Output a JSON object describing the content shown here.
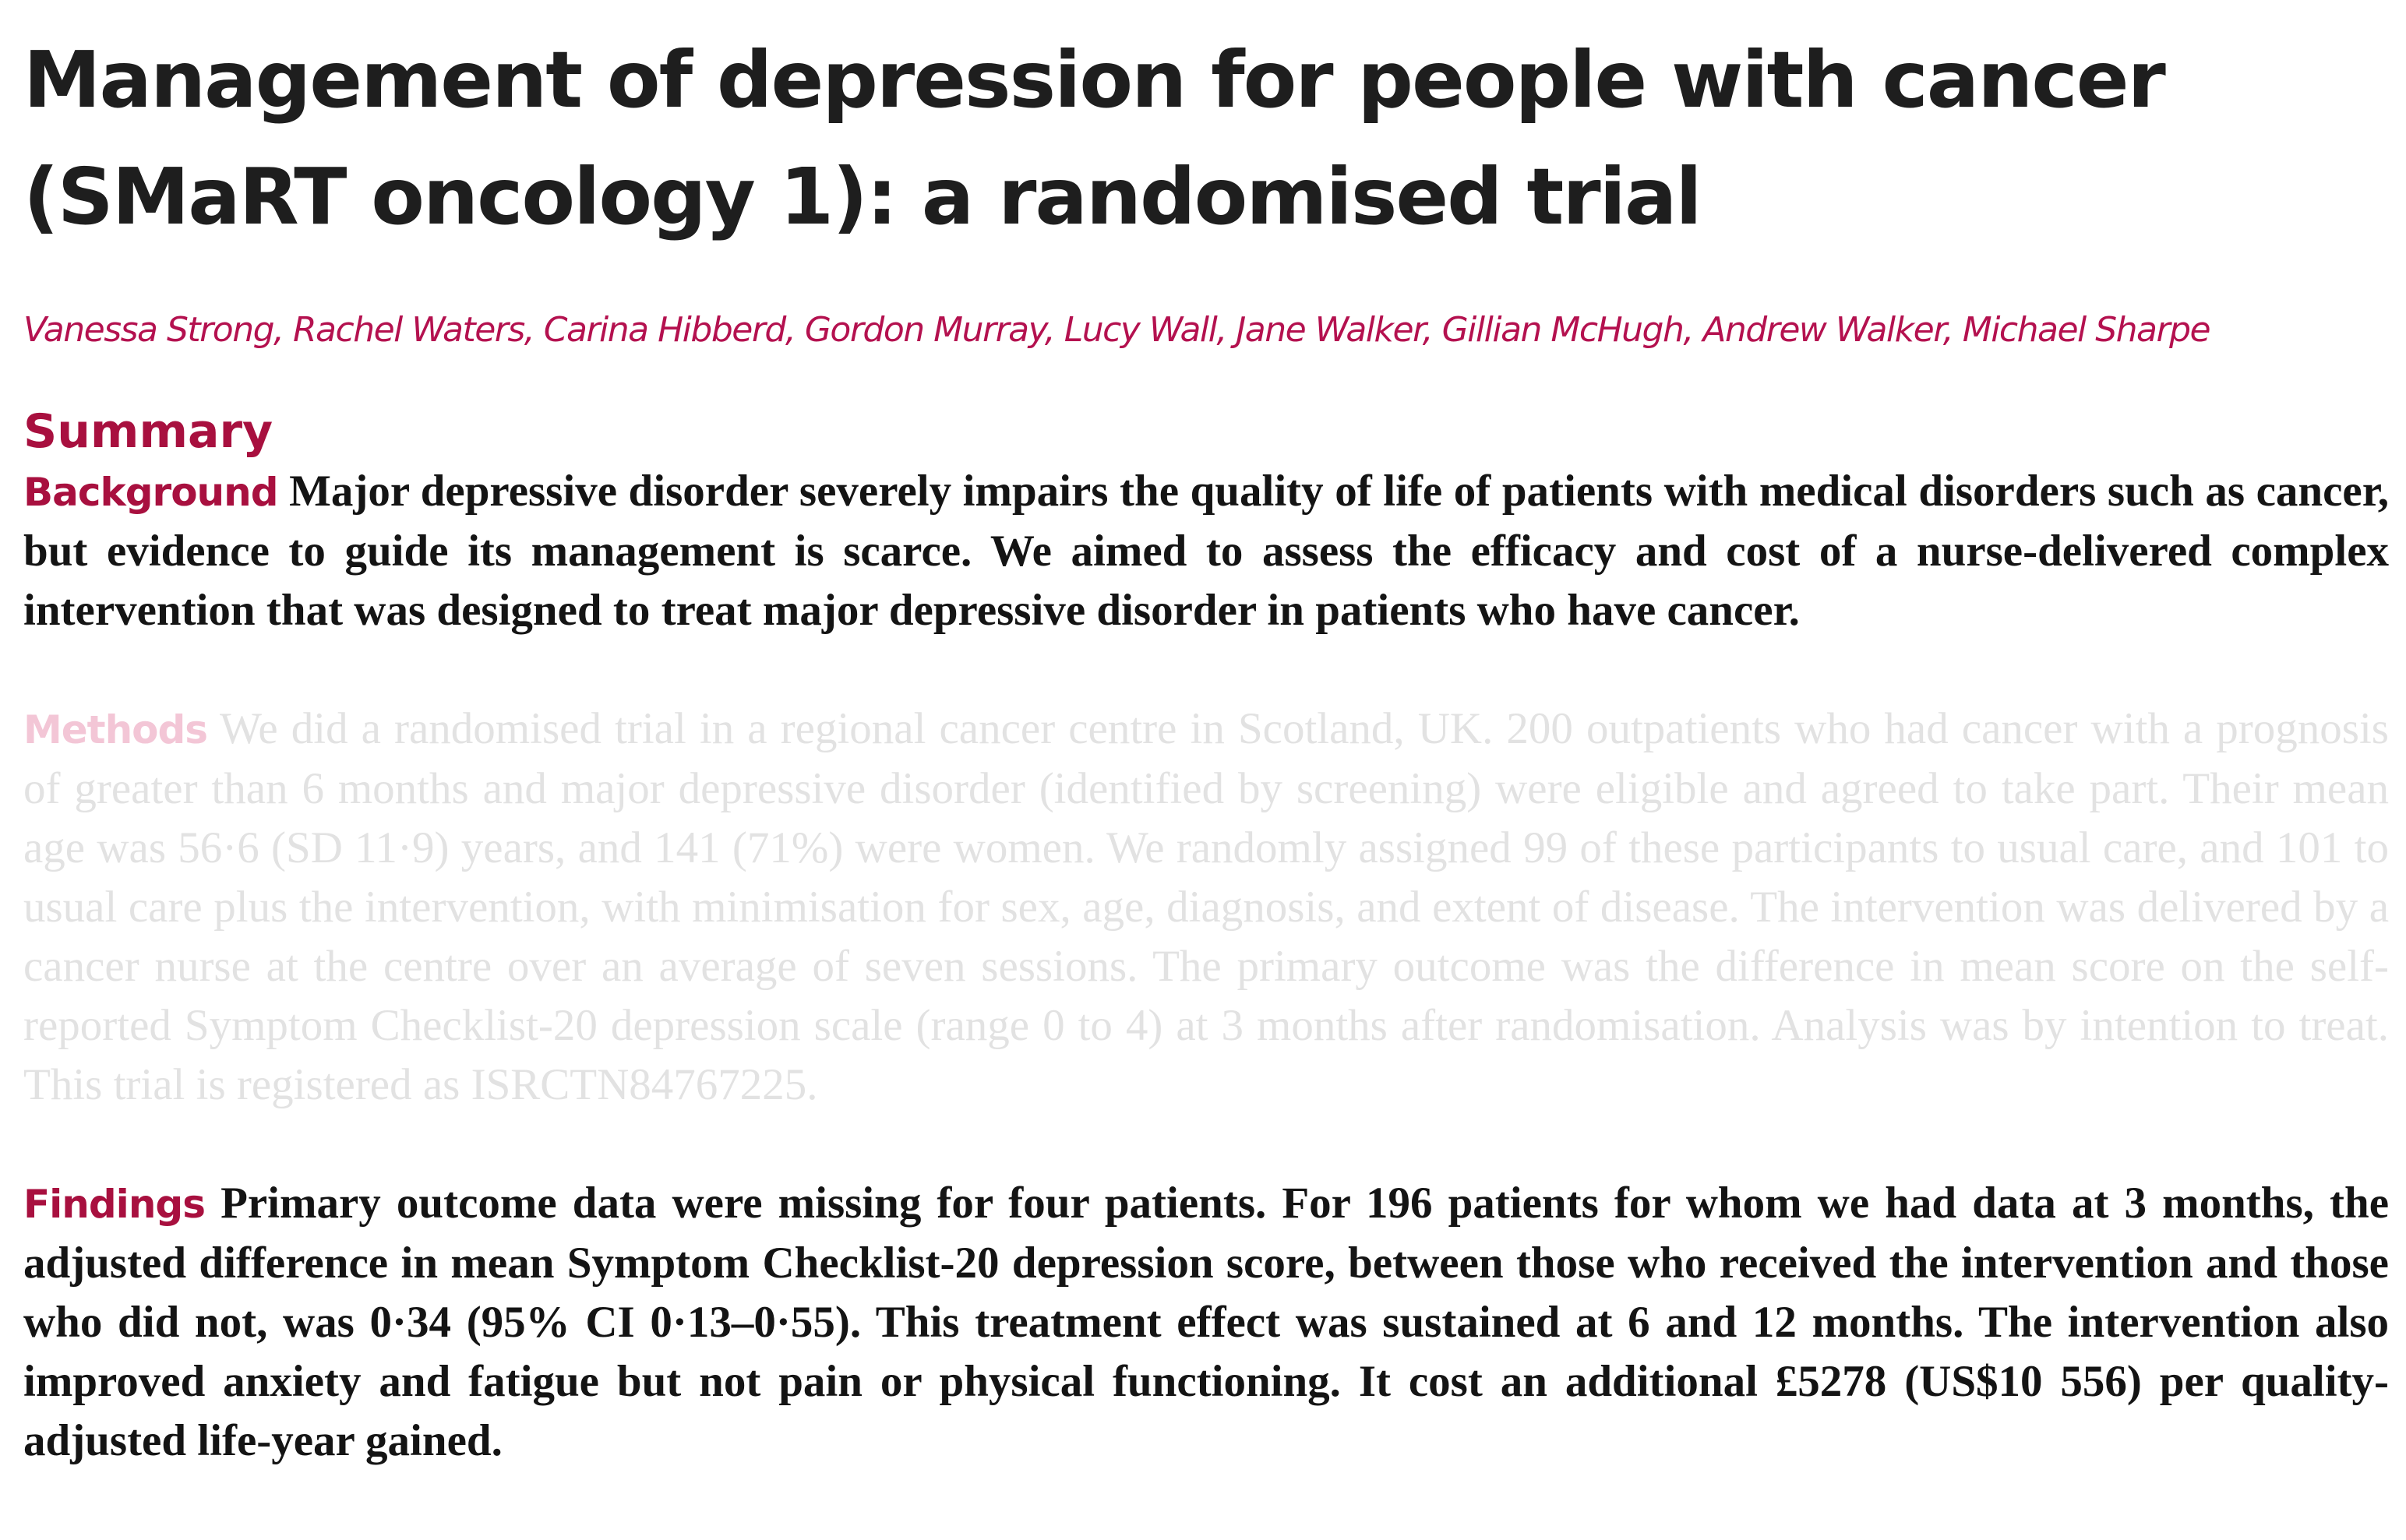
{
  "article": {
    "title_line1": "Management of depression for people with cancer",
    "title_line2": "(SMaRT oncology 1): a randomised trial",
    "authors": "Vanessa Strong, Rachel Waters, Carina Hibberd, Gordon Murray, Lucy Wall, Jane Walker, Gillian McHugh, Andrew Walker, Michael Sharpe"
  },
  "summary": {
    "heading": "Summary",
    "background": {
      "label": "Background",
      "text": "Major depressive disorder severely impairs the quality of life of patients with medical disorders such as cancer, but evidence to guide its management is scarce. We aimed to assess the efficacy and cost of a nurse-delivered complex intervention that was designed to treat major depressive disorder in patients who have cancer."
    },
    "methods": {
      "label": "Methods",
      "text": "We did a randomised trial in a regional cancer centre in Scotland, UK. 200 outpatients who had cancer with a prognosis of greater than 6 months and major depressive disorder (identified by screening) were eligible and agreed to take part. Their mean age was 56·6 (SD 11·9) years, and 141 (71%) were women. We randomly assigned 99 of these participants to usual care, and 101 to usual care plus the intervention, with minimisation for sex, age, diagnosis, and extent of disease. The intervention was delivered by a cancer nurse at the centre over an average of seven sessions. The primary outcome was the difference in mean score on the self-reported Symptom Checklist-20 depression scale (range 0 to 4) at 3 months after randomisation. Analysis was by intention to treat. This trial is registered as ISRCTN84767225."
    },
    "findings": {
      "label": "Findings",
      "text": "Primary outcome data were missing for four patients. For 196 patients for whom we had data at 3 months, the adjusted difference in mean Symptom Checklist-20 depression score, between those who received the intervention and those who did not, was 0·34 (95% CI 0·13–0·55). This treatment effect was sustained at 6 and 12 months. The intervention also improved anxiety and fatigue but not pain or physical functioning. It cost an additional £5278 (US$10 556) per quality-adjusted life-year gained."
    }
  },
  "colors": {
    "accent": "#a8103f",
    "authors": "#b4114f",
    "body_text": "#141414",
    "faded_text": "#e2e2e2",
    "faded_label": "#f3c6d6"
  }
}
